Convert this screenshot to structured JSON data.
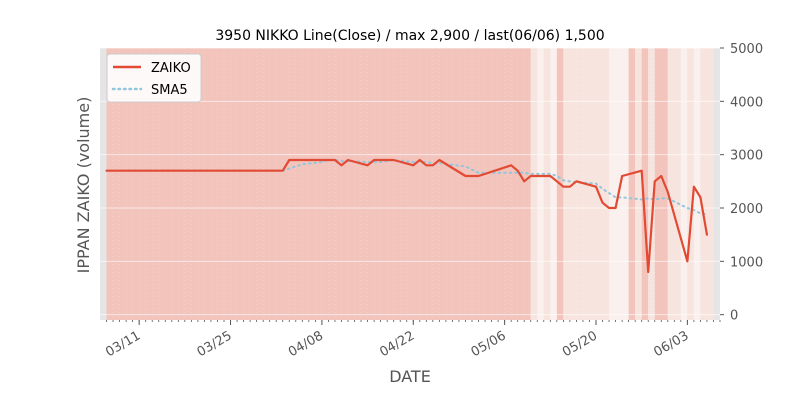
{
  "chart_data": {
    "type": "line",
    "title": "3950 NIKKO Line(Close) / max 2,900 / last(06/06) 1,500",
    "xlabel": "DATE",
    "ylabel": "IPPAN ZAIKO (volume)",
    "ylim": [
      -100,
      5000
    ],
    "yticks": [
      0,
      1000,
      2000,
      3000,
      4000,
      5000
    ],
    "ytick_labels": [
      "0",
      "1000",
      "2000",
      "3000",
      "4000",
      "5000"
    ],
    "y_axis_side": "right",
    "xlim": [
      "2024-03-05",
      "2024-06-08"
    ],
    "xticks": [
      "2024-03-11",
      "2024-03-25",
      "2024-04-08",
      "2024-04-22",
      "2024-05-06",
      "2024-05-20",
      "2024-06-03"
    ],
    "xtick_labels": [
      "03/11",
      "03/25",
      "04/08",
      "04/22",
      "05/06",
      "05/20",
      "06/03"
    ],
    "legend_position": "top-left",
    "grid": true,
    "colors": {
      "zaiko": "#e24a33",
      "sma5": "#92c6dd",
      "band_strong": "#f2c4bc",
      "band_light": "#f7e4df",
      "band_faint": "#faf0ed",
      "plot_bg": "#e5e5e5",
      "text": "#555555"
    },
    "series": [
      {
        "name": "ZAIKO",
        "style": "solid",
        "x": [
          "2024-03-06",
          "2024-03-07",
          "2024-03-08",
          "2024-03-11",
          "2024-03-12",
          "2024-03-13",
          "2024-03-14",
          "2024-03-15",
          "2024-03-18",
          "2024-03-19",
          "2024-03-21",
          "2024-03-22",
          "2024-03-25",
          "2024-03-26",
          "2024-03-27",
          "2024-03-28",
          "2024-03-29",
          "2024-04-01",
          "2024-04-02",
          "2024-04-03",
          "2024-04-04",
          "2024-04-05",
          "2024-04-08",
          "2024-04-09",
          "2024-04-10",
          "2024-04-11",
          "2024-04-12",
          "2024-04-15",
          "2024-04-16",
          "2024-04-17",
          "2024-04-18",
          "2024-04-19",
          "2024-04-22",
          "2024-04-23",
          "2024-04-24",
          "2024-04-25",
          "2024-04-26",
          "2024-04-30",
          "2024-05-01",
          "2024-05-02",
          "2024-05-07",
          "2024-05-08",
          "2024-05-09",
          "2024-05-10",
          "2024-05-13",
          "2024-05-14",
          "2024-05-15",
          "2024-05-16",
          "2024-05-17",
          "2024-05-20",
          "2024-05-21",
          "2024-05-22",
          "2024-05-23",
          "2024-05-24",
          "2024-05-27",
          "2024-05-28",
          "2024-05-29",
          "2024-05-30",
          "2024-05-31",
          "2024-06-03",
          "2024-06-04",
          "2024-06-05",
          "2024-06-06"
        ],
        "values": [
          2700,
          2700,
          2700,
          2700,
          2700,
          2700,
          2700,
          2700,
          2700,
          2700,
          2700,
          2700,
          2700,
          2700,
          2700,
          2700,
          2700,
          2700,
          2700,
          2900,
          2900,
          2900,
          2900,
          2900,
          2900,
          2800,
          2900,
          2800,
          2900,
          2900,
          2900,
          2900,
          2800,
          2900,
          2800,
          2800,
          2900,
          2600,
          2600,
          2600,
          2800,
          2700,
          2500,
          2600,
          2600,
          2500,
          2400,
          2400,
          2500,
          2400,
          2100,
          2000,
          2000,
          2600,
          2700,
          800,
          2500,
          2600,
          2300,
          1000,
          2400,
          2200,
          1500
        ]
      },
      {
        "name": "SMA5",
        "style": "dotted",
        "x": [
          "2024-03-06",
          "2024-03-07",
          "2024-03-08",
          "2024-03-11",
          "2024-03-12",
          "2024-03-13",
          "2024-03-14",
          "2024-03-15",
          "2024-03-18",
          "2024-03-19",
          "2024-03-21",
          "2024-03-22",
          "2024-03-25",
          "2024-03-26",
          "2024-03-27",
          "2024-03-28",
          "2024-03-29",
          "2024-04-01",
          "2024-04-02",
          "2024-04-03",
          "2024-04-04",
          "2024-04-05",
          "2024-04-08",
          "2024-04-09",
          "2024-04-10",
          "2024-04-11",
          "2024-04-12",
          "2024-04-15",
          "2024-04-16",
          "2024-04-17",
          "2024-04-18",
          "2024-04-19",
          "2024-04-22",
          "2024-04-23",
          "2024-04-24",
          "2024-04-25",
          "2024-04-26",
          "2024-04-30",
          "2024-05-01",
          "2024-05-02",
          "2024-05-07",
          "2024-05-08",
          "2024-05-09",
          "2024-05-10",
          "2024-05-13",
          "2024-05-14",
          "2024-05-15",
          "2024-05-16",
          "2024-05-17",
          "2024-05-20",
          "2024-05-21",
          "2024-05-22",
          "2024-05-23",
          "2024-05-24",
          "2024-05-27",
          "2024-05-28",
          "2024-05-29",
          "2024-05-30",
          "2024-05-31",
          "2024-06-03",
          "2024-06-04",
          "2024-06-05",
          "2024-06-06"
        ],
        "values": [
          2700,
          2700,
          2700,
          2700,
          2700,
          2700,
          2700,
          2700,
          2700,
          2700,
          2700,
          2700,
          2700,
          2700,
          2700,
          2700,
          2700,
          2700,
          2700,
          2740,
          2780,
          2820,
          2860,
          2900,
          2900,
          2880,
          2880,
          2860,
          2860,
          2860,
          2880,
          2900,
          2860,
          2880,
          2860,
          2840,
          2840,
          2780,
          2720,
          2660,
          2660,
          2660,
          2660,
          2640,
          2640,
          2600,
          2520,
          2500,
          2480,
          2460,
          2360,
          2280,
          2200,
          2200,
          2160,
          2180,
          2160,
          2180,
          2180,
          2000,
          1960,
          1900,
          1880
        ]
      }
    ],
    "background_bands": [
      {
        "start": "2024-03-06",
        "end": "2024-05-10",
        "shade": "strong"
      },
      {
        "start": "2024-05-10",
        "end": "2024-05-11",
        "shade": "light"
      },
      {
        "start": "2024-05-11",
        "end": "2024-05-12",
        "shade": "faint"
      },
      {
        "start": "2024-05-12",
        "end": "2024-05-13",
        "shade": "light"
      },
      {
        "start": "2024-05-13",
        "end": "2024-05-14",
        "shade": "faint"
      },
      {
        "start": "2024-05-14",
        "end": "2024-05-15",
        "shade": "strong"
      },
      {
        "start": "2024-05-15",
        "end": "2024-05-22",
        "shade": "light"
      },
      {
        "start": "2024-05-22",
        "end": "2024-05-25",
        "shade": "faint"
      },
      {
        "start": "2024-05-25",
        "end": "2024-05-26",
        "shade": "strong"
      },
      {
        "start": "2024-05-26",
        "end": "2024-05-27",
        "shade": "light"
      },
      {
        "start": "2024-05-27",
        "end": "2024-05-28",
        "shade": "strong"
      },
      {
        "start": "2024-05-28",
        "end": "2024-05-29",
        "shade": "light"
      },
      {
        "start": "2024-05-29",
        "end": "2024-05-31",
        "shade": "strong"
      },
      {
        "start": "2024-05-31",
        "end": "2024-06-02",
        "shade": "light"
      },
      {
        "start": "2024-06-02",
        "end": "2024-06-03",
        "shade": "faint"
      },
      {
        "start": "2024-06-03",
        "end": "2024-06-04",
        "shade": "light"
      },
      {
        "start": "2024-06-04",
        "end": "2024-06-05",
        "shade": "faint"
      },
      {
        "start": "2024-06-05",
        "end": "2024-06-07",
        "shade": "light"
      }
    ]
  }
}
